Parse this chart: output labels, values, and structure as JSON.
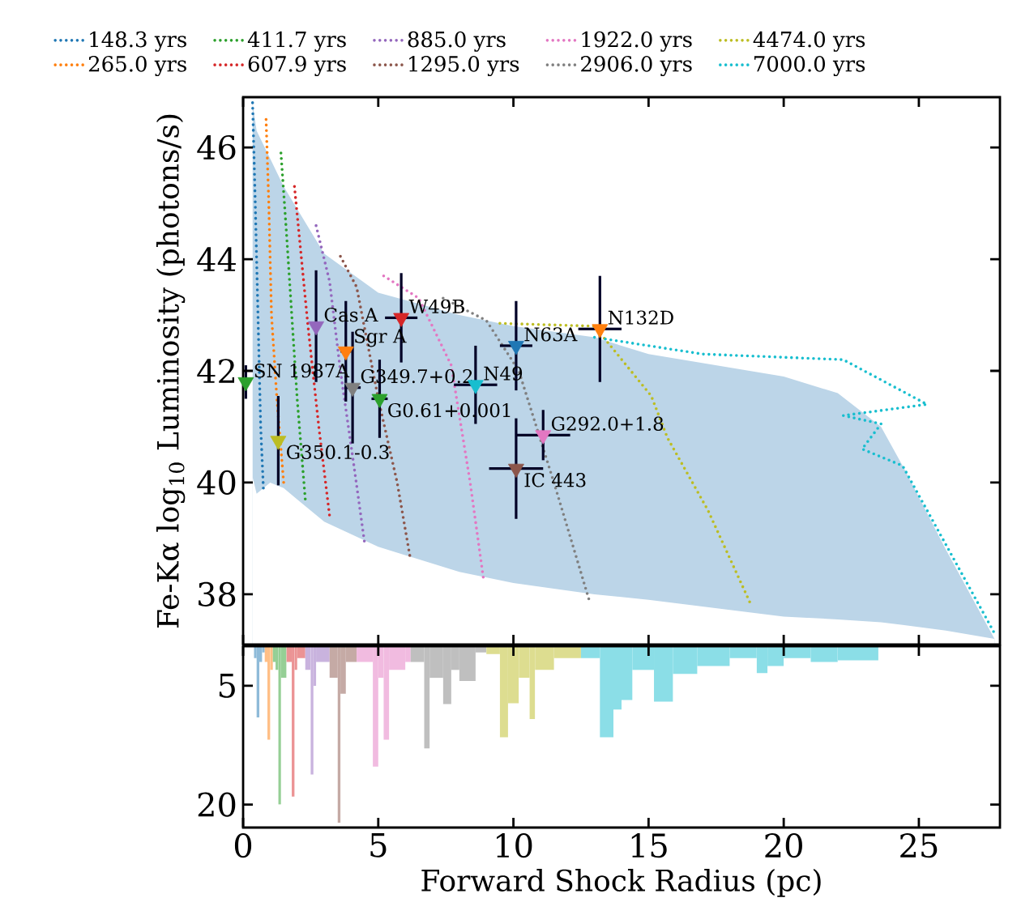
{
  "chart_data": [
    {
      "type": "line",
      "ylabel": "Fe-Kα log$_{10}$ Luminosity (photons/s)",
      "xlim": [
        0,
        28
      ],
      "ylim": [
        37.1,
        46.9
      ],
      "xticks": [
        0,
        5,
        10,
        15,
        20,
        25
      ],
      "yticks": [
        38,
        40,
        42,
        44,
        46
      ],
      "tick_labels": "y",
      "legend": "top",
      "series": [
        {
          "type": "area",
          "color": "#bcd5e8",
          "x": [
            0.35,
            0.5,
            1,
            1.5,
            2,
            3,
            5,
            8,
            10,
            13,
            15,
            20,
            22,
            23.6,
            24.4,
            26,
            27.8
          ],
          "values": [
            46.8,
            46.3,
            45.8,
            45.3,
            44.9,
            44.1,
            43.4,
            43.0,
            42.8,
            42.6,
            42.3,
            41.9,
            41.6,
            41.0,
            40.3,
            38.8,
            37.2
          ]
        },
        {
          "type": "area",
          "color": "#ffffff",
          "x": [
            0.35,
            0.5,
            1,
            1.5,
            2,
            3,
            5,
            8,
            10,
            13,
            15,
            20,
            22,
            23.6,
            24.4,
            26,
            27.8
          ],
          "values": [
            40.1,
            39.8,
            40.0,
            39.9,
            39.7,
            39.3,
            38.85,
            38.4,
            38.2,
            38.0,
            37.9,
            37.6,
            37.55,
            37.5,
            37.45,
            37.35,
            37.2
          ]
        },
        {
          "type": "line",
          "name": "148.3 yrs",
          "color": "#1f77b4",
          "line_style": "dotted",
          "x": [
            0.35,
            0.45,
            0.55,
            0.65,
            0.75
          ],
          "values": [
            46.8,
            45,
            43,
            41,
            39.9
          ]
        },
        {
          "type": "line",
          "name": "265.0 yrs",
          "color": "#ff7f0e",
          "line_style": "dotted",
          "x": [
            0.85,
            0.95,
            1.05,
            1.25,
            1.5
          ],
          "values": [
            46.5,
            45,
            43,
            41.5,
            40.0
          ]
        },
        {
          "type": "line",
          "name": "411.7 yrs",
          "color": "#2ca02c",
          "line_style": "dotted",
          "x": [
            1.4,
            1.6,
            1.8,
            2.0,
            2.3
          ],
          "values": [
            45.9,
            44.5,
            43,
            41.5,
            39.7
          ]
        },
        {
          "type": "line",
          "name": "607.9 yrs",
          "color": "#d62728",
          "line_style": "dotted",
          "x": [
            1.9,
            2.1,
            2.4,
            2.8,
            3.2
          ],
          "values": [
            45.3,
            44.3,
            42.8,
            41,
            39.4
          ]
        },
        {
          "type": "line",
          "name": "885.0 yrs",
          "color": "#9467bd",
          "line_style": "dotted",
          "x": [
            2.7,
            3.2,
            3.6,
            4.1,
            4.5
          ],
          "values": [
            44.6,
            43.6,
            42,
            40.3,
            38.9
          ]
        },
        {
          "type": "line",
          "name": "1295.0 yrs",
          "color": "#8c564b",
          "line_style": "dotted",
          "x": [
            3.6,
            4.2,
            5.0,
            5.7,
            6.2
          ],
          "values": [
            44.05,
            43.5,
            41.5,
            40,
            38.6
          ]
        },
        {
          "type": "line",
          "name": "1922.0 yrs",
          "color": "#e377c2",
          "line_style": "dotted",
          "x": [
            5.2,
            6.5,
            7.7,
            8.4,
            8.9
          ],
          "values": [
            43.7,
            43.3,
            42.1,
            40,
            38.25
          ]
        },
        {
          "type": "line",
          "name": "2906.0 yrs",
          "color": "#7f7f7f",
          "line_style": "dotted",
          "x": [
            7.4,
            9.0,
            10.2,
            11.5,
            12.8
          ],
          "values": [
            43.3,
            42.9,
            42.0,
            40,
            37.9
          ]
        },
        {
          "type": "line",
          "name": "4474.0 yrs",
          "color": "#bcbd22",
          "line_style": "dotted",
          "x": [
            9.5,
            13,
            15.1,
            15.7,
            17.2,
            18.8
          ],
          "values": [
            42.85,
            42.8,
            41.55,
            40.8,
            39.5,
            37.8
          ]
        },
        {
          "type": "line",
          "name": "7000.0 yrs",
          "color": "#17becf",
          "line_style": "dotted",
          "x": [
            13,
            17,
            22.2,
            25.3,
            22.2,
            23.6,
            22.9,
            24.4,
            27.8
          ],
          "values": [
            42.6,
            42.3,
            42.2,
            41.4,
            41.2,
            41.05,
            40.6,
            40.3,
            37.3
          ]
        },
        {
          "type": "scatter",
          "marker": "triangle",
          "x": [
            0.1,
            2.7,
            3.8,
            4.05,
            5.05,
            5.85,
            1.3,
            8.6,
            10.1,
            10.1,
            11.1,
            13.2
          ],
          "values": [
            41.8,
            42.8,
            42.35,
            41.7,
            41.5,
            42.95,
            40.75,
            41.75,
            42.45,
            40.25,
            40.85,
            42.75
          ],
          "colors": [
            "#2ca02c",
            "#9467bd",
            "#ff7f0e",
            "#7f7f7f",
            "#2ca02c",
            "#d62728",
            "#bcbd22",
            "#17becf",
            "#1f77b4",
            "#8c564b",
            "#e377c2",
            "#ff7f0e"
          ],
          "errors": [
            0.3,
            1.0,
            0.9,
            1.0,
            0.7,
            0.8,
            0.8,
            0.7,
            0.8,
            0.9,
            0.45,
            0.95
          ],
          "xerrors": [
            null,
            null,
            0.2,
            0.3,
            0.3,
            0.6,
            null,
            0.8,
            0.6,
            1.0,
            1.0,
            0.8
          ]
        }
      ],
      "annotations": [
        {
          "text": "SN 1987A",
          "x": 0.1,
          "y": 41.8
        },
        {
          "text": "Cas A",
          "x": 2.7,
          "y": 42.8
        },
        {
          "text": "Sgr A",
          "x": 3.8,
          "y": 42.35
        },
        {
          "text": "G349.7+0.2",
          "x": 4.05,
          "y": 41.7
        },
        {
          "text": "G0.61+0.001",
          "x": 5.05,
          "y": 41.5
        },
        {
          "text": "W49B",
          "x": 5.85,
          "y": 42.95
        },
        {
          "text": "G350.1-0.3",
          "x": 1.3,
          "y": 40.75
        },
        {
          "text": "N49",
          "x": 8.6,
          "y": 41.75
        },
        {
          "text": "N63A",
          "x": 10.1,
          "y": 42.45
        },
        {
          "text": "IC 443",
          "x": 10.1,
          "y": 40.25
        },
        {
          "text": "G292.0+1.8",
          "x": 11.1,
          "y": 40.85
        },
        {
          "text": "N132D",
          "x": 13.2,
          "y": 42.75
        }
      ]
    },
    {
      "type": "histogram",
      "xlabel": "Forward Shock Radius (pc)",
      "xlim": [
        0,
        28
      ],
      "ylim": [
        22.9,
        0
      ],
      "xticks": [
        0,
        5,
        10,
        15,
        20,
        25
      ],
      "yticks": [
        5,
        20
      ],
      "bins": [
        0.4,
        0.5,
        0.6,
        0.7,
        0.8,
        0.9,
        1.0,
        1.1,
        1.2,
        1.3,
        1.4,
        1.6,
        1.8,
        1.9,
        2.0,
        2.3,
        2.5,
        2.6,
        2.7,
        3.2,
        3.5,
        3.6,
        3.8,
        4.2,
        4.8,
        5.0,
        5.2,
        5.4,
        6.0,
        6.2,
        6.7,
        6.9,
        7.4,
        7.7,
        8.0,
        8.6,
        9.0,
        9.5,
        9.8,
        10.2,
        10.6,
        10.8,
        11.5,
        12.5,
        13.2,
        13.7,
        14.0,
        14.4,
        15.2,
        15.9,
        16.8,
        18.0,
        19.0,
        19.4,
        20.0,
        21.0,
        22.0,
        23.5
      ],
      "values": [
        1.5,
        9.0,
        2,
        0.8,
        2,
        11.8,
        3,
        2,
        3,
        20,
        4,
        2,
        19,
        3,
        1.5,
        3,
        16.2,
        5,
        2,
        4,
        22.3,
        6,
        2,
        2,
        15.2,
        4,
        11.8,
        3,
        2,
        2,
        12.9,
        4,
        7.3,
        3,
        4.4,
        0.8,
        1,
        11.5,
        7.2,
        4,
        9.2,
        3,
        1.5,
        1.5,
        11.5,
        8,
        6.8,
        3,
        7,
        3.5,
        2.5,
        1.5,
        3.4,
        2.5,
        1.5,
        2,
        1.8
      ],
      "colors": [
        "#8fbbd9",
        "#8fbbd9",
        "#8fbbd9",
        "#8fbbd9",
        "#ffbf86",
        "#ffbf86",
        "#ffbf86",
        "#95cf95",
        "#95cf95",
        "#95cf95",
        "#95cf95",
        "#eb9394",
        "#eb9394",
        "#eb9394",
        "#eb9394",
        "#c9b3de",
        "#c9b3de",
        "#c9b3de",
        "#c9b3de",
        "#c5aaa5",
        "#c5aaa5",
        "#c5aaa5",
        "#c5aaa5",
        "#f1bbe0",
        "#f1bbe0",
        "#f1bbe0",
        "#f1bbe0",
        "#f1bbe0",
        "#f1bbe0",
        "#bfbfbf",
        "#bfbfbf",
        "#bfbfbf",
        "#bfbfbf",
        "#bfbfbf",
        "#bfbfbf",
        "#bfbfbf",
        "#dddd90",
        "#dddd90",
        "#dddd90",
        "#dddd90",
        "#dddd90",
        "#dddd90",
        "#dddd90",
        "#8bdee7",
        "#8bdee7",
        "#8bdee7",
        "#8bdee7",
        "#8bdee7",
        "#8bdee7",
        "#8bdee7",
        "#8bdee7",
        "#8bdee7",
        "#8bdee7",
        "#8bdee7",
        "#8bdee7",
        "#8bdee7",
        "#8bdee7"
      ]
    }
  ]
}
